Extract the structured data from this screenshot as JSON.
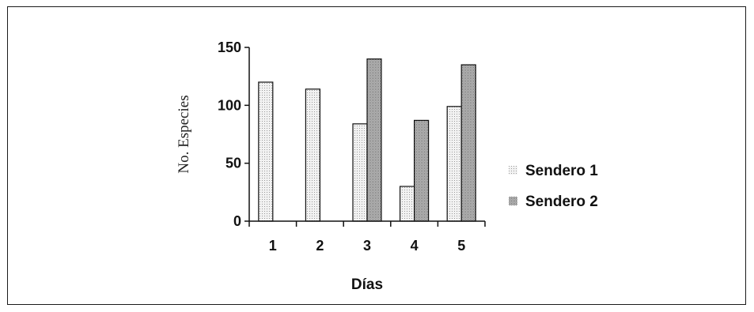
{
  "chart_data": {
    "type": "bar",
    "categories": [
      "1",
      "2",
      "3",
      "4",
      "5"
    ],
    "series": [
      {
        "name": "Sendero 1",
        "values": [
          120,
          114,
          84,
          30,
          99
        ],
        "color": "#ececec"
      },
      {
        "name": "Sendero 2",
        "values": [
          0,
          0,
          140,
          87,
          135
        ],
        "color": "#b4b4b4"
      }
    ],
    "xlabel": "Días",
    "ylabel": "No. Especies",
    "ylim": [
      0,
      150
    ],
    "yticks": [
      "0",
      "50",
      "100",
      "150"
    ],
    "grid": false,
    "legend_position": "right"
  }
}
